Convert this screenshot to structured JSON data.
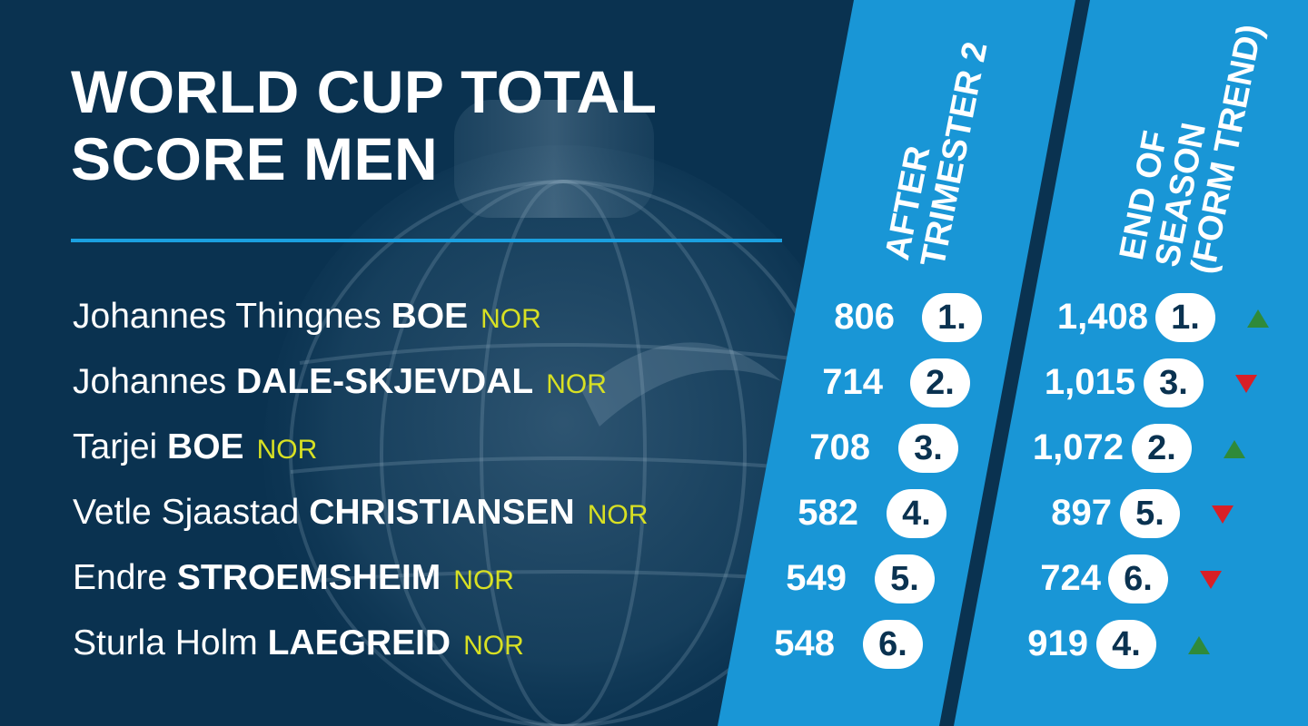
{
  "title": {
    "line1": "WORLD CUP TOTAL",
    "line2": "SCORE MEN"
  },
  "columns": {
    "after_trimester": {
      "line1": "AFTER",
      "line2": "TRIMESTER 2"
    },
    "end_of_season": {
      "line1": "END OF",
      "line2": "SEASON",
      "line3": "(FORM TREND)"
    }
  },
  "rows": [
    {
      "first": "Johannes Thingnes",
      "last": "BOE",
      "country": "NOR",
      "t2_score": "806",
      "t2_rank": "1.",
      "eos_score": "1,408",
      "eos_rank": "1.",
      "trend": "up"
    },
    {
      "first": "Johannes",
      "last": "DALE-SKJEVDAL",
      "country": "NOR",
      "t2_score": "714",
      "t2_rank": "2.",
      "eos_score": "1,015",
      "eos_rank": "3.",
      "trend": "down"
    },
    {
      "first": "Tarjei",
      "last": "BOE",
      "country": "NOR",
      "t2_score": "708",
      "t2_rank": "3.",
      "eos_score": "1,072",
      "eos_rank": "2.",
      "trend": "up"
    },
    {
      "first": "Vetle Sjaastad",
      "last": "CHRISTIANSEN",
      "country": "NOR",
      "t2_score": "582",
      "t2_rank": "4.",
      "eos_score": "897",
      "eos_rank": "5.",
      "trend": "down"
    },
    {
      "first": "Endre",
      "last": "STROEMSHEIM",
      "country": "NOR",
      "t2_score": "549",
      "t2_rank": "5.",
      "eos_score": "724",
      "eos_rank": "6.",
      "trend": "down"
    },
    {
      "first": "Sturla Holm",
      "last": "LAEGREID",
      "country": "NOR",
      "t2_score": "548",
      "t2_rank": "6.",
      "eos_score": "919",
      "eos_rank": "4.",
      "trend": "up"
    }
  ],
  "colors": {
    "background": "#0a3250",
    "band": "#1996d6",
    "accent_line": "#1ba0e0",
    "country": "#d8e023",
    "trend_up": "#2f8a3a",
    "trend_down": "#d81f26"
  }
}
